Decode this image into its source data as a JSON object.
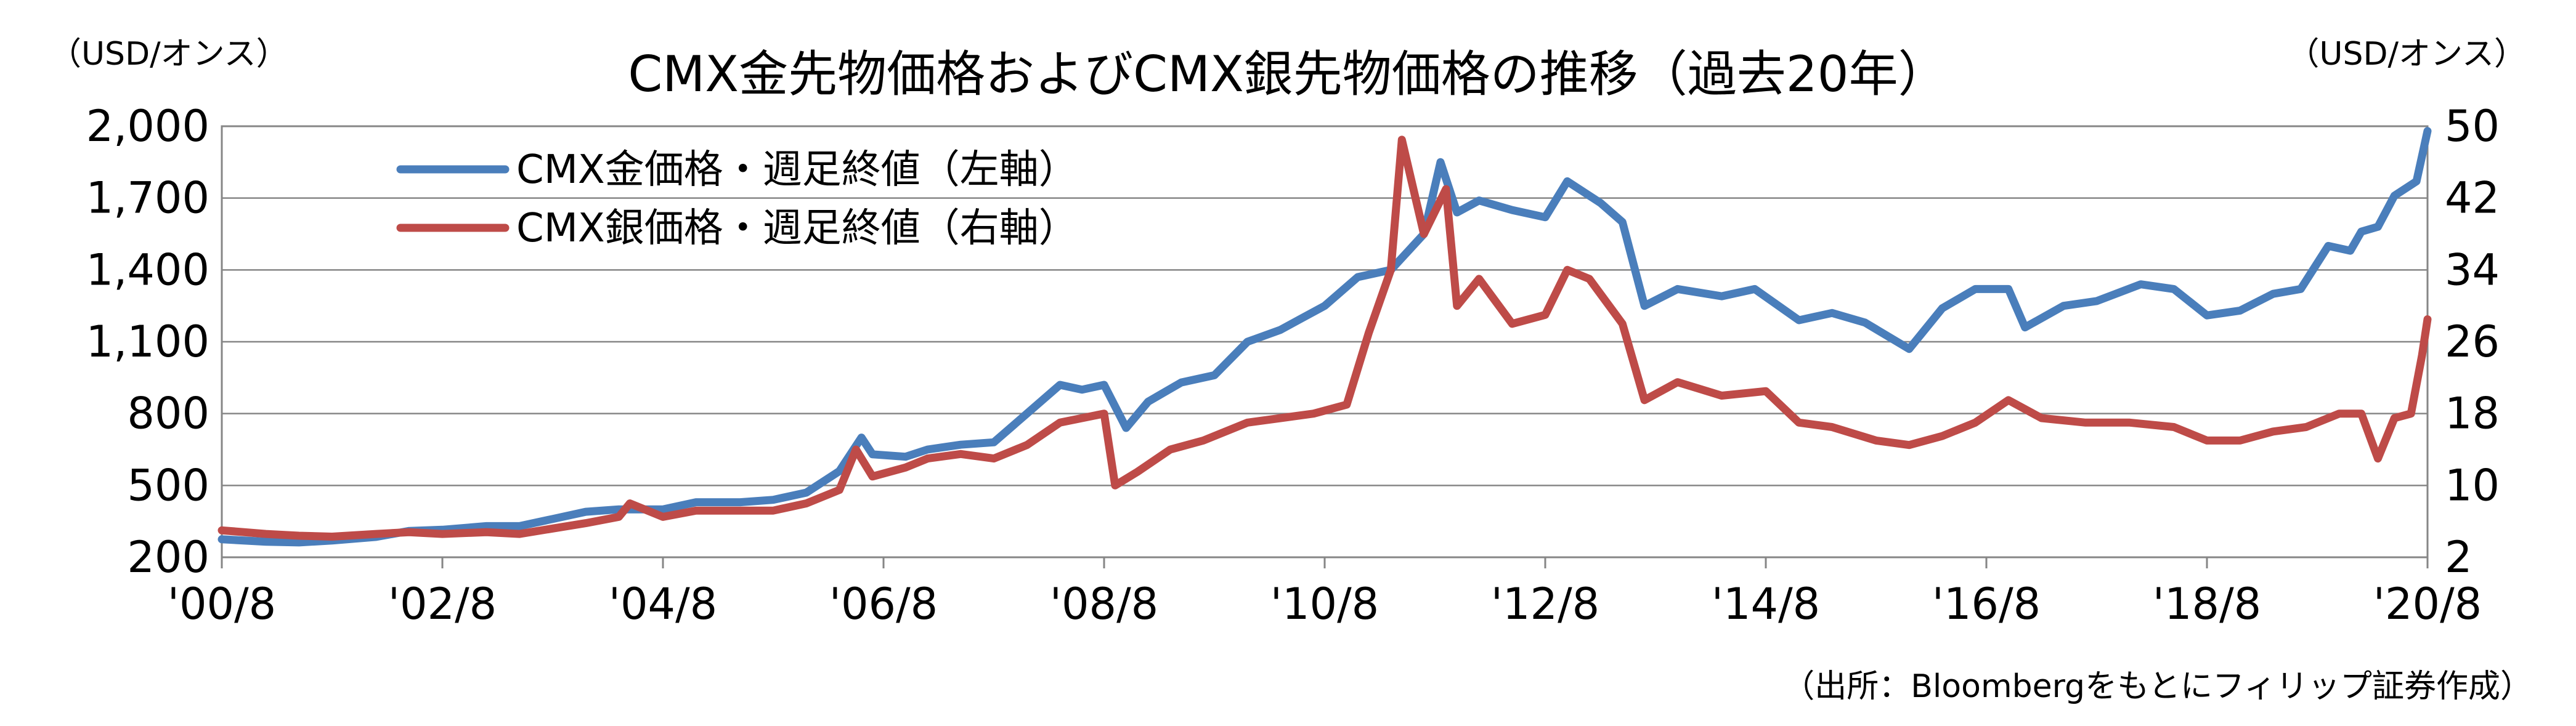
{
  "chart_data": {
    "type": "line",
    "title": "CMX金先物価格およびCMX銀先物価格の推移（過去20年）",
    "left_unit": "（USD/オンス）",
    "right_unit": "（USD/オンス）",
    "source": "（出所：Bloombergをもとにフィリップ証券作成）",
    "x_range": [
      2000.6,
      2020.6
    ],
    "x_ticks": [
      {
        "x": 2000.6,
        "label": "'00/8"
      },
      {
        "x": 2002.6,
        "label": "'02/8"
      },
      {
        "x": 2004.6,
        "label": "'04/8"
      },
      {
        "x": 2006.6,
        "label": "'06/8"
      },
      {
        "x": 2008.6,
        "label": "'08/8"
      },
      {
        "x": 2010.6,
        "label": "'10/8"
      },
      {
        "x": 2012.6,
        "label": "'12/8"
      },
      {
        "x": 2014.6,
        "label": "'14/8"
      },
      {
        "x": 2016.6,
        "label": "'16/8"
      },
      {
        "x": 2018.6,
        "label": "'18/8"
      },
      {
        "x": 2020.6,
        "label": "'20/8"
      }
    ],
    "y_left": {
      "range": [
        200,
        2000
      ],
      "ticks": [
        200,
        500,
        800,
        1100,
        1400,
        1700,
        2000
      ],
      "tick_labels": [
        "200",
        "500",
        "800",
        "1,100",
        "1,400",
        "1,700",
        "2,000"
      ]
    },
    "y_right": {
      "range": [
        2,
        50
      ],
      "ticks": [
        2,
        10,
        18,
        26,
        34,
        42,
        50
      ],
      "tick_labels": [
        "2",
        "10",
        "18",
        "26",
        "34",
        "42",
        "50"
      ]
    },
    "grid": "horizontal",
    "legend_position": "top-left",
    "series": [
      {
        "name": "CMX金価格・週足終値（左軸）",
        "axis": "left",
        "color": "#4a7ebb",
        "x": [
          2000.6,
          2001.0,
          2001.3,
          2001.6,
          2002.0,
          2002.3,
          2002.6,
          2003.0,
          2003.3,
          2003.6,
          2003.9,
          2004.2,
          2004.6,
          2004.9,
          2005.3,
          2005.6,
          2005.9,
          2006.2,
          2006.4,
          2006.5,
          2006.8,
          2007.0,
          2007.3,
          2007.6,
          2007.9,
          2008.2,
          2008.4,
          2008.6,
          2008.8,
          2009.0,
          2009.3,
          2009.6,
          2009.9,
          2010.2,
          2010.4,
          2010.6,
          2010.9,
          2011.2,
          2011.5,
          2011.65,
          2011.8,
          2012.0,
          2012.3,
          2012.6,
          2012.8,
          2013.1,
          2013.3,
          2013.5,
          2013.8,
          2014.2,
          2014.5,
          2014.9,
          2015.2,
          2015.5,
          2015.9,
          2016.2,
          2016.5,
          2016.8,
          2016.95,
          2017.3,
          2017.6,
          2018.0,
          2018.3,
          2018.6,
          2018.9,
          2019.2,
          2019.45,
          2019.7,
          2019.9,
          2020.0,
          2020.15,
          2020.3,
          2020.5,
          2020.6
        ],
        "values": [
          275,
          265,
          262,
          270,
          285,
          310,
          315,
          330,
          330,
          360,
          390,
          400,
          400,
          430,
          430,
          440,
          470,
          560,
          700,
          630,
          620,
          650,
          670,
          680,
          800,
          920,
          900,
          920,
          740,
          850,
          930,
          960,
          1100,
          1150,
          1200,
          1250,
          1370,
          1400,
          1550,
          1850,
          1640,
          1690,
          1650,
          1620,
          1770,
          1680,
          1600,
          1250,
          1320,
          1290,
          1320,
          1190,
          1220,
          1180,
          1070,
          1240,
          1320,
          1320,
          1160,
          1250,
          1270,
          1340,
          1320,
          1210,
          1230,
          1300,
          1320,
          1500,
          1480,
          1560,
          1580,
          1710,
          1770,
          1980
        ]
      },
      {
        "name": "CMX銀価格・週足終値（右軸）",
        "axis": "right",
        "color": "#be4b48",
        "x": [
          2000.6,
          2001.0,
          2001.3,
          2001.6,
          2002.0,
          2002.3,
          2002.6,
          2003.0,
          2003.3,
          2003.6,
          2003.9,
          2004.2,
          2004.3,
          2004.6,
          2004.9,
          2005.3,
          2005.6,
          2005.9,
          2006.2,
          2006.35,
          2006.5,
          2006.8,
          2007.0,
          2007.3,
          2007.6,
          2007.9,
          2008.2,
          2008.6,
          2008.7,
          2008.9,
          2009.2,
          2009.5,
          2009.9,
          2010.2,
          2010.5,
          2010.8,
          2011.0,
          2011.2,
          2011.3,
          2011.5,
          2011.7,
          2011.8,
          2012.0,
          2012.3,
          2012.6,
          2012.8,
          2013.0,
          2013.3,
          2013.5,
          2013.8,
          2014.2,
          2014.6,
          2014.9,
          2015.2,
          2015.6,
          2015.9,
          2016.2,
          2016.5,
          2016.8,
          2017.1,
          2017.5,
          2017.9,
          2018.3,
          2018.6,
          2018.9,
          2019.2,
          2019.5,
          2019.8,
          2020.0,
          2020.15,
          2020.3,
          2020.45,
          2020.55,
          2020.6
        ],
        "values": [
          5,
          4.6,
          4.4,
          4.3,
          4.6,
          4.8,
          4.6,
          4.8,
          4.6,
          5.2,
          5.8,
          6.5,
          8.0,
          6.5,
          7.2,
          7.2,
          7.2,
          8.0,
          9.5,
          14.0,
          11.0,
          12.0,
          13.0,
          13.5,
          13.0,
          14.5,
          17.0,
          18.0,
          10.0,
          11.5,
          14.0,
          15.0,
          17.0,
          17.5,
          18.0,
          19.0,
          27.0,
          34.0,
          48.5,
          38.0,
          43.0,
          30.0,
          33.0,
          28.0,
          29.0,
          34.0,
          33.0,
          28.0,
          19.5,
          21.5,
          20.0,
          20.5,
          17.0,
          16.5,
          15.0,
          14.5,
          15.5,
          17.0,
          19.5,
          17.5,
          17.0,
          17.0,
          16.5,
          15.0,
          15.0,
          16.0,
          16.5,
          18.0,
          18.0,
          13.0,
          17.5,
          18.0,
          24.5,
          28.5
        ]
      }
    ]
  }
}
